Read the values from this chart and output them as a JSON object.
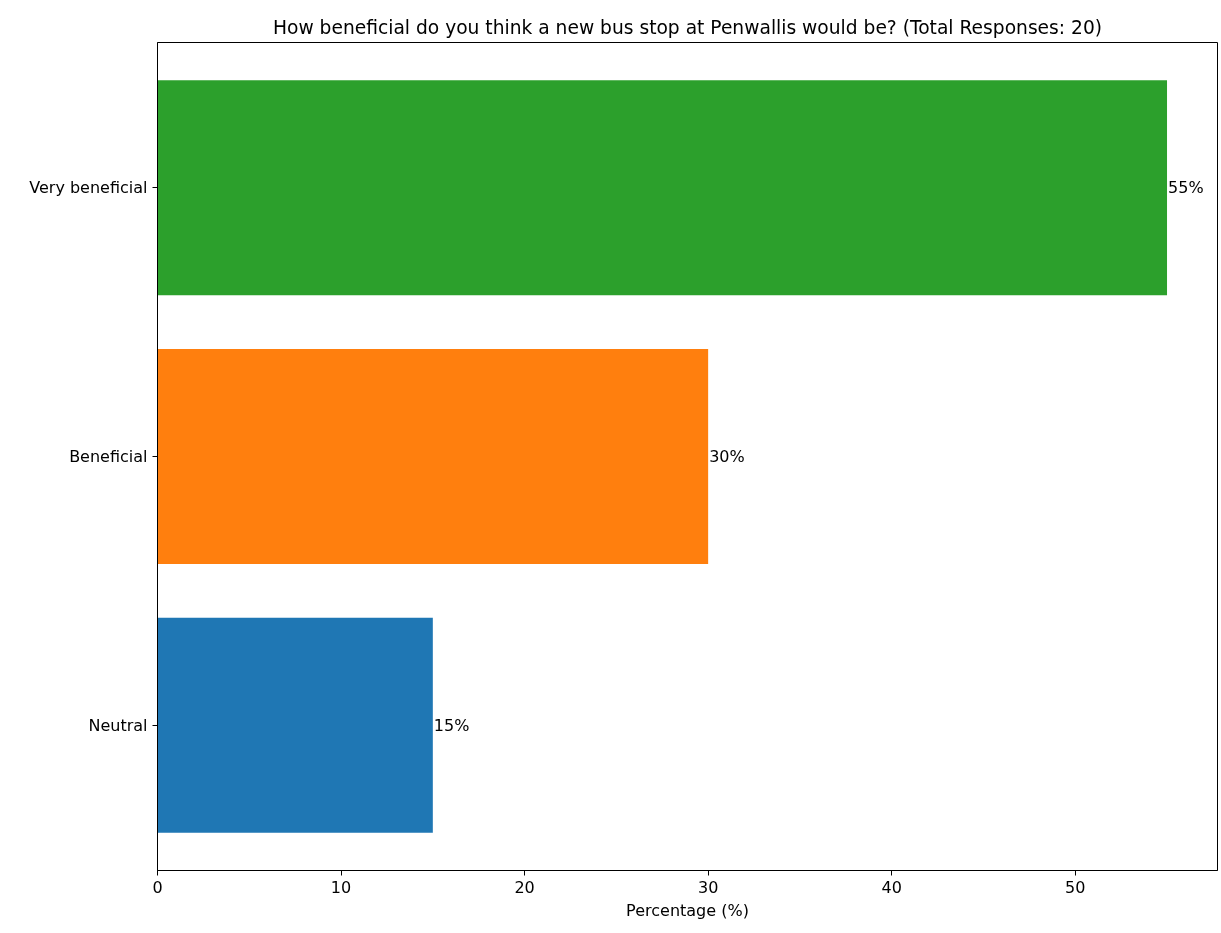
{
  "chart_data": {
    "type": "bar",
    "orientation": "horizontal",
    "title": "How beneficial do you think a new bus stop at Penwallis would be? (Total Responses: 20)",
    "xlabel": "Percentage (%)",
    "categories": [
      "Very beneficial",
      "Beneficial",
      "Neutral"
    ],
    "values": [
      55,
      30,
      15
    ],
    "colors": [
      "#2ca02c",
      "#ff7f0e",
      "#1f77b4"
    ],
    "value_labels": [
      "55%",
      "30%",
      "15%"
    ],
    "xlim": [
      0,
      57.75
    ],
    "xticks": [
      0,
      10,
      20,
      30,
      40,
      50
    ],
    "grid": false
  }
}
